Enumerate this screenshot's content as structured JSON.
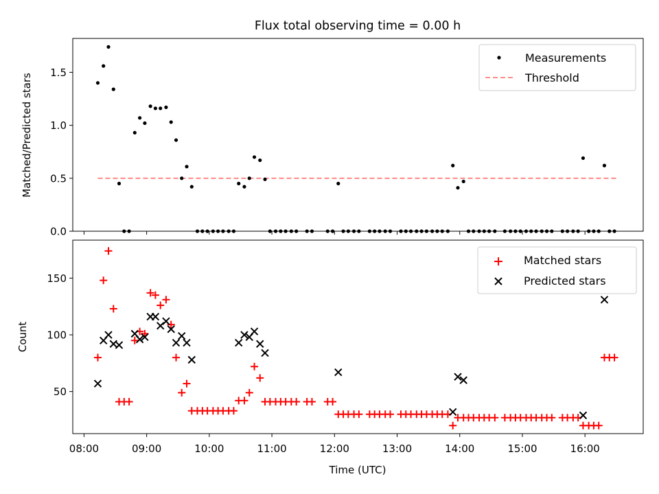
{
  "chart_data": {
    "type": "scatter",
    "title": "Flux total observing time = 0.00 h",
    "xlabel": "Time (UTC)",
    "x_ticks": [
      "08:00",
      "09:00",
      "10:00",
      "11:00",
      "12:00",
      "13:00",
      "14:00",
      "15:00",
      "16:00"
    ],
    "x_range_hours": [
      7.82,
      16.93
    ],
    "top": {
      "ylabel": "Matched/Predicted stars",
      "ylim": [
        0.0,
        1.82
      ],
      "y_ticks": [
        "0.0",
        "0.5",
        "1.0",
        "1.5"
      ],
      "legend": [
        "Measurements",
        "Threshold"
      ],
      "threshold": {
        "name": "Threshold",
        "value": 0.5,
        "x_start": 8.22,
        "x_end": 16.5,
        "color": "#ff7f7f"
      },
      "measurements": {
        "name": "Measurements",
        "color": "#000000",
        "points": [
          [
            8.22,
            1.4
          ],
          [
            8.31,
            1.56
          ],
          [
            8.39,
            1.74
          ],
          [
            8.47,
            1.34
          ],
          [
            8.56,
            0.45
          ],
          [
            8.64,
            0.0
          ],
          [
            8.72,
            0.0
          ],
          [
            8.81,
            0.93
          ],
          [
            8.89,
            1.07
          ],
          [
            8.97,
            1.02
          ],
          [
            9.06,
            1.18
          ],
          [
            9.14,
            1.16
          ],
          [
            9.22,
            1.16
          ],
          [
            9.31,
            1.17
          ],
          [
            9.39,
            1.03
          ],
          [
            9.47,
            0.86
          ],
          [
            9.56,
            0.5
          ],
          [
            9.64,
            0.61
          ],
          [
            9.72,
            0.42
          ],
          [
            9.81,
            0.0
          ],
          [
            9.89,
            0.0
          ],
          [
            9.97,
            0.0
          ],
          [
            10.06,
            0.0
          ],
          [
            10.14,
            0.0
          ],
          [
            10.22,
            0.0
          ],
          [
            10.31,
            0.0
          ],
          [
            10.39,
            0.0
          ],
          [
            10.47,
            0.45
          ],
          [
            10.56,
            0.42
          ],
          [
            10.64,
            0.5
          ],
          [
            10.72,
            0.7
          ],
          [
            10.81,
            0.67
          ],
          [
            10.89,
            0.49
          ],
          [
            10.97,
            0.0
          ],
          [
            11.06,
            0.0
          ],
          [
            11.14,
            0.0
          ],
          [
            11.22,
            0.0
          ],
          [
            11.31,
            0.0
          ],
          [
            11.39,
            0.0
          ],
          [
            11.56,
            0.0
          ],
          [
            11.64,
            0.0
          ],
          [
            11.89,
            0.0
          ],
          [
            11.97,
            0.0
          ],
          [
            12.06,
            0.45
          ],
          [
            12.14,
            0.0
          ],
          [
            12.22,
            0.0
          ],
          [
            12.31,
            0.0
          ],
          [
            12.39,
            0.0
          ],
          [
            12.56,
            0.0
          ],
          [
            12.64,
            0.0
          ],
          [
            12.72,
            0.0
          ],
          [
            12.81,
            0.0
          ],
          [
            12.89,
            0.0
          ],
          [
            13.06,
            0.0
          ],
          [
            13.14,
            0.0
          ],
          [
            13.22,
            0.0
          ],
          [
            13.31,
            0.0
          ],
          [
            13.39,
            0.0
          ],
          [
            13.47,
            0.0
          ],
          [
            13.56,
            0.0
          ],
          [
            13.64,
            0.0
          ],
          [
            13.72,
            0.0
          ],
          [
            13.81,
            0.0
          ],
          [
            13.89,
            0.62
          ],
          [
            13.97,
            0.41
          ],
          [
            14.06,
            0.47
          ],
          [
            14.14,
            0.0
          ],
          [
            14.22,
            0.0
          ],
          [
            14.31,
            0.0
          ],
          [
            14.39,
            0.0
          ],
          [
            14.47,
            0.0
          ],
          [
            14.56,
            0.0
          ],
          [
            14.72,
            0.0
          ],
          [
            14.81,
            0.0
          ],
          [
            14.89,
            0.0
          ],
          [
            14.97,
            0.0
          ],
          [
            15.06,
            0.0
          ],
          [
            15.14,
            0.0
          ],
          [
            15.22,
            0.0
          ],
          [
            15.31,
            0.0
          ],
          [
            15.39,
            0.0
          ],
          [
            15.47,
            0.0
          ],
          [
            15.64,
            0.0
          ],
          [
            15.72,
            0.0
          ],
          [
            15.81,
            0.0
          ],
          [
            15.89,
            0.0
          ],
          [
            15.97,
            0.69
          ],
          [
            16.06,
            0.0
          ],
          [
            16.14,
            0.0
          ],
          [
            16.22,
            0.0
          ],
          [
            16.31,
            0.62
          ],
          [
            16.39,
            0.0
          ],
          [
            16.47,
            0.0
          ]
        ]
      }
    },
    "bottom": {
      "ylabel": "Count",
      "ylim": [
        12.9,
        183.5
      ],
      "y_ticks": [
        "50",
        "100",
        "150"
      ],
      "legend": [
        "Matched stars",
        "Predicted stars"
      ],
      "matched": {
        "name": "Matched stars",
        "color": "#ff0000",
        "marker": "+",
        "points": [
          [
            8.22,
            80
          ],
          [
            8.31,
            148
          ],
          [
            8.39,
            174
          ],
          [
            8.47,
            123
          ],
          [
            8.56,
            41
          ],
          [
            8.64,
            41
          ],
          [
            8.72,
            41
          ],
          [
            8.81,
            95
          ],
          [
            8.89,
            103
          ],
          [
            8.97,
            101
          ],
          [
            9.06,
            137
          ],
          [
            9.14,
            135
          ],
          [
            9.22,
            126
          ],
          [
            9.31,
            131
          ],
          [
            9.39,
            109
          ],
          [
            9.47,
            80
          ],
          [
            9.56,
            49
          ],
          [
            9.64,
            57
          ],
          [
            9.72,
            33
          ],
          [
            9.81,
            33
          ],
          [
            9.89,
            33
          ],
          [
            9.97,
            33
          ],
          [
            10.06,
            33
          ],
          [
            10.14,
            33
          ],
          [
            10.22,
            33
          ],
          [
            10.31,
            33
          ],
          [
            10.39,
            33
          ],
          [
            10.47,
            42
          ],
          [
            10.56,
            42
          ],
          [
            10.64,
            49
          ],
          [
            10.72,
            72
          ],
          [
            10.81,
            62
          ],
          [
            10.89,
            41
          ],
          [
            10.97,
            41
          ],
          [
            11.06,
            41
          ],
          [
            11.14,
            41
          ],
          [
            11.22,
            41
          ],
          [
            11.31,
            41
          ],
          [
            11.39,
            41
          ],
          [
            11.56,
            41
          ],
          [
            11.64,
            41
          ],
          [
            11.89,
            41
          ],
          [
            11.97,
            41
          ],
          [
            12.06,
            30
          ],
          [
            12.14,
            30
          ],
          [
            12.22,
            30
          ],
          [
            12.31,
            30
          ],
          [
            12.39,
            30
          ],
          [
            12.56,
            30
          ],
          [
            12.64,
            30
          ],
          [
            12.72,
            30
          ],
          [
            12.81,
            30
          ],
          [
            12.89,
            30
          ],
          [
            13.06,
            30
          ],
          [
            13.14,
            30
          ],
          [
            13.22,
            30
          ],
          [
            13.31,
            30
          ],
          [
            13.39,
            30
          ],
          [
            13.47,
            30
          ],
          [
            13.56,
            30
          ],
          [
            13.64,
            30
          ],
          [
            13.72,
            30
          ],
          [
            13.81,
            30
          ],
          [
            13.89,
            20
          ],
          [
            13.97,
            27
          ],
          [
            14.06,
            27
          ],
          [
            14.14,
            27
          ],
          [
            14.22,
            27
          ],
          [
            14.31,
            27
          ],
          [
            14.39,
            27
          ],
          [
            14.47,
            27
          ],
          [
            14.56,
            27
          ],
          [
            14.72,
            27
          ],
          [
            14.81,
            27
          ],
          [
            14.89,
            27
          ],
          [
            14.97,
            27
          ],
          [
            15.06,
            27
          ],
          [
            15.14,
            27
          ],
          [
            15.22,
            27
          ],
          [
            15.31,
            27
          ],
          [
            15.39,
            27
          ],
          [
            15.47,
            27
          ],
          [
            15.64,
            27
          ],
          [
            15.72,
            27
          ],
          [
            15.81,
            27
          ],
          [
            15.89,
            27
          ],
          [
            15.97,
            20
          ],
          [
            16.06,
            20
          ],
          [
            16.14,
            20
          ],
          [
            16.22,
            20
          ],
          [
            16.31,
            80
          ],
          [
            16.39,
            80
          ],
          [
            16.47,
            80
          ]
        ]
      },
      "predicted": {
        "name": "Predicted stars",
        "color": "#000000",
        "marker": "x",
        "points": [
          [
            8.22,
            57
          ],
          [
            8.31,
            95
          ],
          [
            8.39,
            100
          ],
          [
            8.47,
            92
          ],
          [
            8.56,
            91
          ],
          [
            8.81,
            101
          ],
          [
            8.89,
            96
          ],
          [
            8.97,
            98
          ],
          [
            9.06,
            116
          ],
          [
            9.14,
            116
          ],
          [
            9.22,
            108
          ],
          [
            9.31,
            112
          ],
          [
            9.39,
            105
          ],
          [
            9.47,
            93
          ],
          [
            9.56,
            99
          ],
          [
            9.64,
            93
          ],
          [
            9.72,
            78
          ],
          [
            10.47,
            93
          ],
          [
            10.56,
            100
          ],
          [
            10.64,
            98
          ],
          [
            10.72,
            103
          ],
          [
            10.81,
            92
          ],
          [
            10.89,
            84
          ],
          [
            12.06,
            67
          ],
          [
            13.89,
            32
          ],
          [
            13.97,
            63
          ],
          [
            14.06,
            60
          ],
          [
            15.97,
            29
          ],
          [
            16.31,
            131
          ]
        ]
      }
    }
  }
}
